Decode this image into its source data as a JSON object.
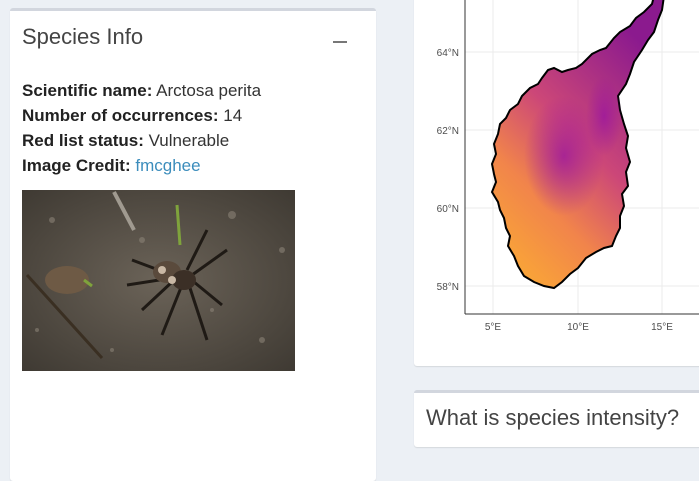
{
  "species_box": {
    "title": "Species Info",
    "collapse_icon": "minus-icon",
    "scientific_label": "Scientific name:",
    "scientific_value": "Arctosa perita",
    "occurrences_label": "Number of occurrences:",
    "occurrences_value": "14",
    "redlist_label": "Red list status:",
    "redlist_value": "Vulnerable",
    "credit_label": "Image Credit:",
    "credit_value": "fmcghee"
  },
  "map": {
    "y_ticks": [
      "64°N",
      "62°N",
      "60°N",
      "58°N"
    ],
    "x_ticks": [
      "5°E",
      "10°E",
      "15°E"
    ]
  },
  "intensity_box": {
    "title": "What is species intensity?"
  },
  "colors": {
    "link": "#3c8dbc",
    "box_border": "#d2d6de",
    "background": "#ecf0f5"
  }
}
